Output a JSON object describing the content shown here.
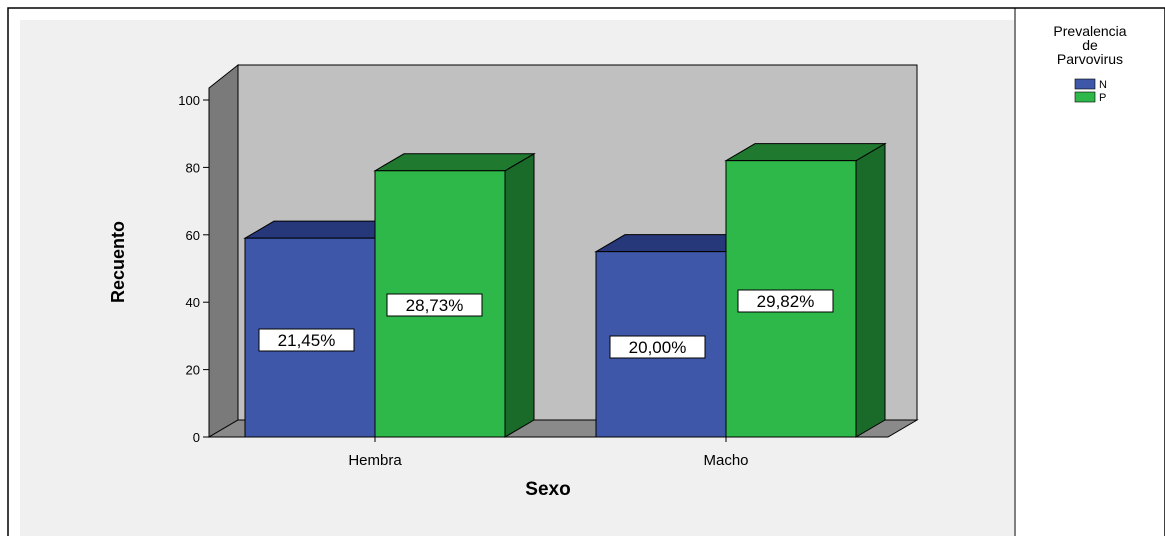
{
  "chart_data": {
    "type": "bar",
    "title": "",
    "xlabel": "Sexo",
    "ylabel": "Recuento",
    "ylim": [
      0,
      100
    ],
    "yticks": [
      "0",
      "20",
      "40",
      "60",
      "80",
      "100"
    ],
    "categories": [
      "Hembra",
      "Macho"
    ],
    "legend": {
      "title_lines": [
        "Prevalencia",
        "de",
        "Parvovirus"
      ],
      "position": "top-right"
    },
    "series": [
      {
        "name": "N",
        "values": [
          59,
          55
        ],
        "labels": [
          "21,45%",
          "20,00%"
        ]
      },
      {
        "name": "P",
        "values": [
          79,
          82
        ],
        "labels": [
          "28,73%",
          "29,82%"
        ]
      }
    ],
    "grid": false,
    "colors": {
      "series": [
        {
          "front": "#3f57a8",
          "top": "#26377a",
          "side": "#1d2b66"
        },
        {
          "front": "#2fb84a",
          "top": "#1f7a2f",
          "side": "#1a6a2a"
        }
      ],
      "back_wall": "#c0c0c0",
      "left_wall": "#7a7a7a",
      "floor": "#8a8a8a"
    }
  }
}
